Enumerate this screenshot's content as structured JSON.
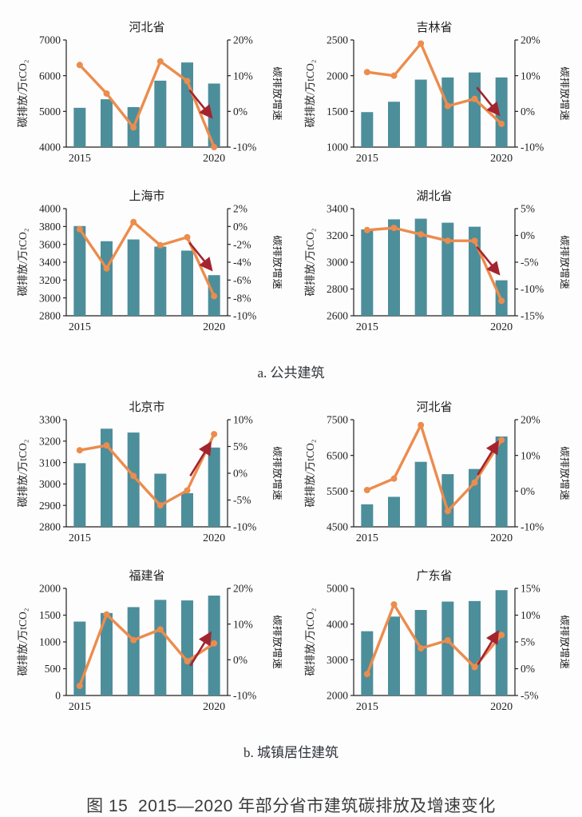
{
  "colors": {
    "bar": "#4D8E9B",
    "line": "#EC8C4D",
    "arrow": "#A3242F",
    "axis": "#1f1f1f",
    "text": "#1f1f1f"
  },
  "sections": [
    {
      "id": "a",
      "label": "a. 公共建筑"
    },
    {
      "id": "b",
      "label": "b. 城镇居住建筑"
    }
  ],
  "caption": "图 15  2015—2020 年部分省市建筑碳排放及增速变化",
  "chart_data": [
    {
      "type": "bar+line",
      "section": "a",
      "title": "河北省",
      "categories": [
        2015,
        2016,
        2017,
        2018,
        2019,
        2020
      ],
      "x_tick_labels": [
        "2015",
        "2020"
      ],
      "ylabel_left": "碳排放/万tCO₂",
      "ylabel_right": "碳排放增速",
      "left_axis": {
        "min": 4000,
        "max": 7000,
        "step": 1000
      },
      "right_axis": {
        "min": -10,
        "max": 20,
        "step": 10,
        "unit": "%"
      },
      "grid": false,
      "series": [
        {
          "name": "碳排放",
          "type": "bar",
          "axis": "left",
          "values": [
            5100,
            5340,
            5120,
            5860,
            6370,
            5780
          ]
        },
        {
          "name": "碳排放增速",
          "type": "line",
          "axis": "right",
          "values": [
            13,
            5,
            -4.5,
            14,
            8.5,
            -10
          ]
        }
      ],
      "arrow": "down"
    },
    {
      "type": "bar+line",
      "section": "a",
      "title": "吉林省",
      "categories": [
        2015,
        2016,
        2017,
        2018,
        2019,
        2020
      ],
      "x_tick_labels": [
        "2015",
        "2020"
      ],
      "ylabel_left": "碳排放/万tCO₂",
      "ylabel_right": "碳排放增速",
      "left_axis": {
        "min": 1000,
        "max": 2500,
        "step": 500
      },
      "right_axis": {
        "min": -10,
        "max": 20,
        "step": 10,
        "unit": "%"
      },
      "grid": false,
      "series": [
        {
          "name": "碳排放",
          "type": "bar",
          "axis": "left",
          "values": [
            1490,
            1635,
            1945,
            1975,
            2045,
            1975
          ]
        },
        {
          "name": "碳排放增速",
          "type": "line",
          "axis": "right",
          "values": [
            11,
            10,
            19,
            1.5,
            3.5,
            -3.5
          ]
        }
      ],
      "arrow": "down"
    },
    {
      "type": "bar+line",
      "section": "a",
      "title": "上海市",
      "categories": [
        2015,
        2016,
        2017,
        2018,
        2019,
        2020
      ],
      "x_tick_labels": [
        "2015",
        "2020"
      ],
      "ylabel_left": "碳排放/万tCO₂",
      "ylabel_right": "碳排放增速",
      "left_axis": {
        "min": 2800,
        "max": 4000,
        "step": 200
      },
      "right_axis": {
        "min": -10,
        "max": 2,
        "step": 2,
        "unit": "%"
      },
      "grid": false,
      "series": [
        {
          "name": "碳排放",
          "type": "bar",
          "axis": "left",
          "values": [
            3805,
            3635,
            3655,
            3575,
            3530,
            3255
          ]
        },
        {
          "name": "碳排放增速",
          "type": "line",
          "axis": "right",
          "values": [
            -0.3,
            -4.7,
            0.5,
            -2.1,
            -1.2,
            -7.8
          ]
        }
      ],
      "arrow": "down"
    },
    {
      "type": "bar+line",
      "section": "a",
      "title": "湖北省",
      "categories": [
        2015,
        2016,
        2017,
        2018,
        2019,
        2020
      ],
      "x_tick_labels": [
        "2015",
        "2020"
      ],
      "ylabel_left": "碳排放/万tCO₂",
      "ylabel_right": "碳排放增速",
      "left_axis": {
        "min": 2600,
        "max": 3400,
        "step": 200
      },
      "right_axis": {
        "min": -15,
        "max": 5,
        "step": 5,
        "unit": "%"
      },
      "grid": false,
      "series": [
        {
          "name": "碳排放",
          "type": "bar",
          "axis": "left",
          "values": [
            3245,
            3320,
            3325,
            3295,
            3265,
            2865
          ]
        },
        {
          "name": "碳排放增速",
          "type": "line",
          "axis": "right",
          "values": [
            1,
            1.4,
            0.2,
            -1,
            -1,
            -12.2
          ]
        }
      ],
      "arrow": "down"
    },
    {
      "type": "bar+line",
      "section": "b",
      "title": "北京市",
      "categories": [
        2015,
        2016,
        2017,
        2018,
        2019,
        2020
      ],
      "x_tick_labels": [
        "2015",
        "2020"
      ],
      "ylabel_left": "碳排放/万tCO₂",
      "ylabel_right": "碳排放增速",
      "left_axis": {
        "min": 2800,
        "max": 3300,
        "step": 100
      },
      "right_axis": {
        "min": -10,
        "max": 10,
        "step": 5,
        "unit": "%"
      },
      "grid": false,
      "series": [
        {
          "name": "碳排放",
          "type": "bar",
          "axis": "left",
          "values": [
            3097,
            3258,
            3240,
            3048,
            2957,
            3170
          ]
        },
        {
          "name": "碳排放增速",
          "type": "line",
          "axis": "right",
          "values": [
            4.3,
            5.2,
            -0.5,
            -6,
            -3.2,
            7.3
          ]
        }
      ],
      "arrow": "up"
    },
    {
      "type": "bar+line",
      "section": "b",
      "title": "河北省",
      "categories": [
        2015,
        2016,
        2017,
        2018,
        2019,
        2020
      ],
      "x_tick_labels": [
        "2015",
        "2020"
      ],
      "ylabel_left": "碳排放/万tCO₂",
      "ylabel_right": "碳排放增速",
      "left_axis": {
        "min": 4500,
        "max": 7500,
        "step": 1000
      },
      "right_axis": {
        "min": -10,
        "max": 20,
        "step": 10,
        "unit": "%"
      },
      "grid": false,
      "series": [
        {
          "name": "碳排放",
          "type": "bar",
          "axis": "left",
          "values": [
            5130,
            5340,
            6320,
            5975,
            6120,
            7030
          ]
        },
        {
          "name": "碳排放增速",
          "type": "line",
          "axis": "right",
          "values": [
            0.3,
            3.5,
            18.5,
            -5.6,
            2.4,
            14.3
          ]
        }
      ],
      "arrow": "up"
    },
    {
      "type": "bar+line",
      "section": "b",
      "title": "福建省",
      "categories": [
        2015,
        2016,
        2017,
        2018,
        2019,
        2020
      ],
      "x_tick_labels": [
        "2015",
        "2020"
      ],
      "ylabel_left": "碳排放/万tCO₂",
      "ylabel_right": "碳排放增速",
      "left_axis": {
        "min": 0,
        "max": 2000,
        "step": 500
      },
      "right_axis": {
        "min": -10,
        "max": 20,
        "step": 10,
        "unit": "%"
      },
      "grid": false,
      "series": [
        {
          "name": "碳排放",
          "type": "bar",
          "axis": "left",
          "values": [
            1380,
            1540,
            1650,
            1785,
            1775,
            1865
          ]
        },
        {
          "name": "碳排放增速",
          "type": "line",
          "axis": "right",
          "values": [
            -7.3,
            12.7,
            5.5,
            8.5,
            -0.4,
            4.6
          ]
        }
      ],
      "arrow": "up"
    },
    {
      "type": "bar+line",
      "section": "b",
      "title": "广东省",
      "categories": [
        2015,
        2016,
        2017,
        2018,
        2019,
        2020
      ],
      "x_tick_labels": [
        "2015",
        "2020"
      ],
      "ylabel_left": "碳排放/万tCO₂",
      "ylabel_right": "碳排放增速",
      "left_axis": {
        "min": 2000,
        "max": 5000,
        "step": 1000
      },
      "right_axis": {
        "min": -5,
        "max": 15,
        "step": 5,
        "unit": "%"
      },
      "grid": false,
      "series": [
        {
          "name": "碳排放",
          "type": "bar",
          "axis": "left",
          "values": [
            3800,
            4210,
            4395,
            4630,
            4645,
            4950
          ]
        },
        {
          "name": "碳排放增速",
          "type": "line",
          "axis": "right",
          "values": [
            -1,
            12,
            3.8,
            5.3,
            0.3,
            6.3
          ]
        }
      ],
      "arrow": "up"
    }
  ]
}
